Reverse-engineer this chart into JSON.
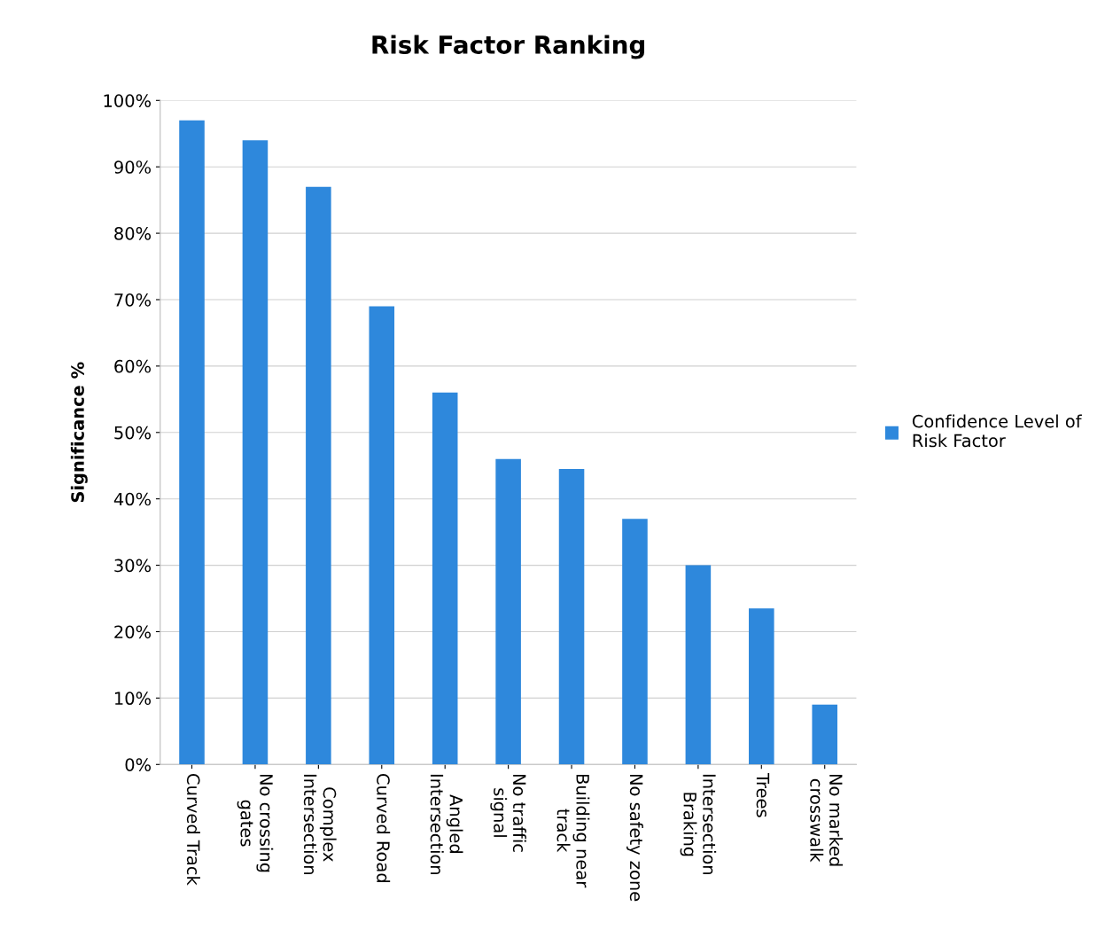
{
  "chart_data": {
    "type": "bar",
    "title": "Risk Factor Ranking",
    "ylabel": "Significance %",
    "categories": [
      "Curved Track",
      "No crossing\ngates",
      "Complex\nIntersection",
      "Curved Road",
      "Angled\nIntersection",
      "No traffic\nsignal",
      "Building near\ntrack",
      "No safety zone",
      "Intersection\nBraking",
      "Trees",
      "No marked\ncrosswalk"
    ],
    "series": [
      {
        "name": "Confidence Level of\nRisk Factor",
        "color": "#2e88dc",
        "values": [
          97,
          94,
          87,
          69,
          56,
          46,
          44.5,
          37,
          30,
          23.5,
          9
        ]
      }
    ],
    "ylim": [
      0,
      100
    ],
    "yticks": [
      {
        "value": 0,
        "label": "0%"
      },
      {
        "value": 10,
        "label": "10%"
      },
      {
        "value": 20,
        "label": "20%"
      },
      {
        "value": 30,
        "label": "30%"
      },
      {
        "value": 40,
        "label": "40%"
      },
      {
        "value": 50,
        "label": "50%"
      },
      {
        "value": 60,
        "label": "60%"
      },
      {
        "value": 70,
        "label": "70%"
      },
      {
        "value": 80,
        "label": "80%"
      },
      {
        "value": 90,
        "label": "90%"
      },
      {
        "value": 100,
        "label": "100%"
      }
    ],
    "grid": "y",
    "legend": "right"
  }
}
